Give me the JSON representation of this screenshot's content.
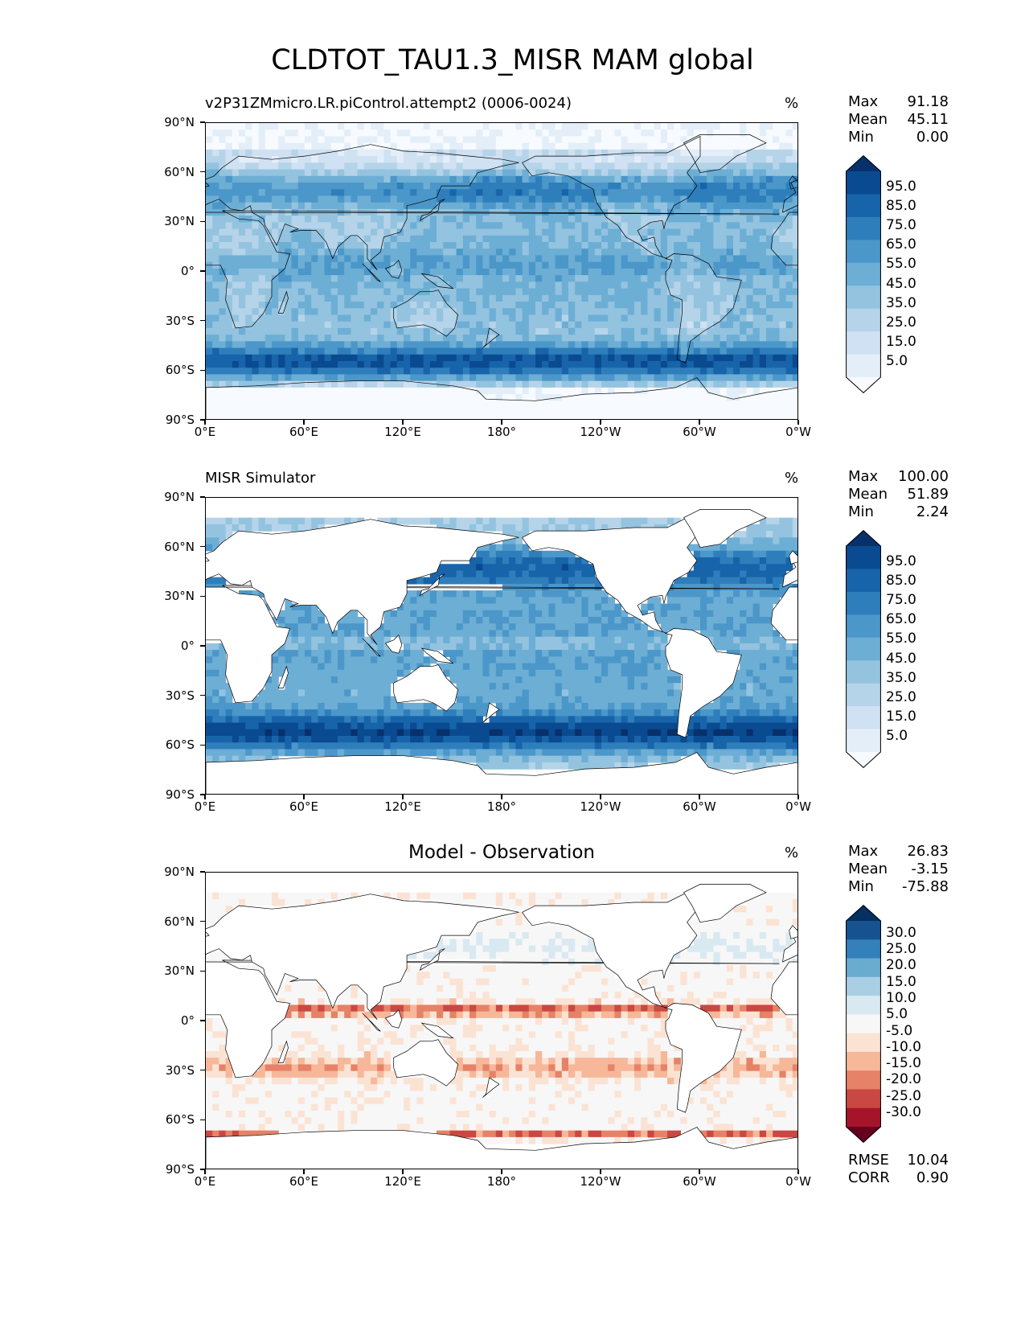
{
  "figure": {
    "title": "CLDTOT_TAU1.3_MISR MAM global"
  },
  "axes": {
    "lat_ticks": [
      "90°N",
      "60°N",
      "30°N",
      "0°",
      "30°S",
      "60°S",
      "90°S"
    ],
    "lon_ticks": [
      "0°E",
      "60°E",
      "120°E",
      "180°",
      "120°W",
      "60°W",
      "0°W"
    ]
  },
  "colormaps": {
    "blues": [
      "#f7fbff",
      "#e3eef9",
      "#cfe1f2",
      "#b5d4e9",
      "#93c3df",
      "#6daed5",
      "#4b97c9",
      "#2f7ebc",
      "#1864aa",
      "#0a4a90",
      "#08306b"
    ],
    "diff": [
      "#67001f",
      "#a51429",
      "#ca4842",
      "#e58267",
      "#f7b799",
      "#fbe3d4",
      "#f7f7f7",
      "#d9e9f1",
      "#aacfe5",
      "#6aacd0",
      "#3380ba",
      "#175290",
      "#053061"
    ]
  },
  "panels": [
    {
      "title": "v2P31ZMmicro.LR.piControl.attempt2 (0006-0024)",
      "units": "%",
      "stats": [
        {
          "label": "Max",
          "value": "91.18"
        },
        {
          "label": "Mean",
          "value": "45.11"
        },
        {
          "label": "Min",
          "value": "0.00"
        }
      ],
      "colorbar_labels": [
        "95.0",
        "85.0",
        "75.0",
        "65.0",
        "55.0",
        "45.0",
        "35.0",
        "25.0",
        "15.0",
        "5.0"
      ],
      "colormap": "blues"
    },
    {
      "title": "MISR Simulator",
      "units": "%",
      "stats": [
        {
          "label": "Max",
          "value": "100.00"
        },
        {
          "label": "Mean",
          "value": "51.89"
        },
        {
          "label": "Min",
          "value": "2.24"
        }
      ],
      "colorbar_labels": [
        "95.0",
        "85.0",
        "75.0",
        "65.0",
        "55.0",
        "45.0",
        "35.0",
        "25.0",
        "15.0",
        "5.0"
      ],
      "colormap": "blues"
    },
    {
      "title": "Model - Observation",
      "units": "%",
      "stats": [
        {
          "label": "Max",
          "value": "26.83"
        },
        {
          "label": "Mean",
          "value": "-3.15"
        },
        {
          "label": "Min",
          "value": "-75.88"
        }
      ],
      "colorbar_labels": [
        "30.0",
        "25.0",
        "20.0",
        "15.0",
        "10.0",
        "5.0",
        "-5.0",
        "-10.0",
        "-15.0",
        "-20.0",
        "-25.0",
        "-30.0"
      ],
      "colormap": "diff",
      "metrics": [
        {
          "label": "RMSE",
          "value": "10.04"
        },
        {
          "label": "CORR",
          "value": "0.90"
        }
      ]
    }
  ]
}
